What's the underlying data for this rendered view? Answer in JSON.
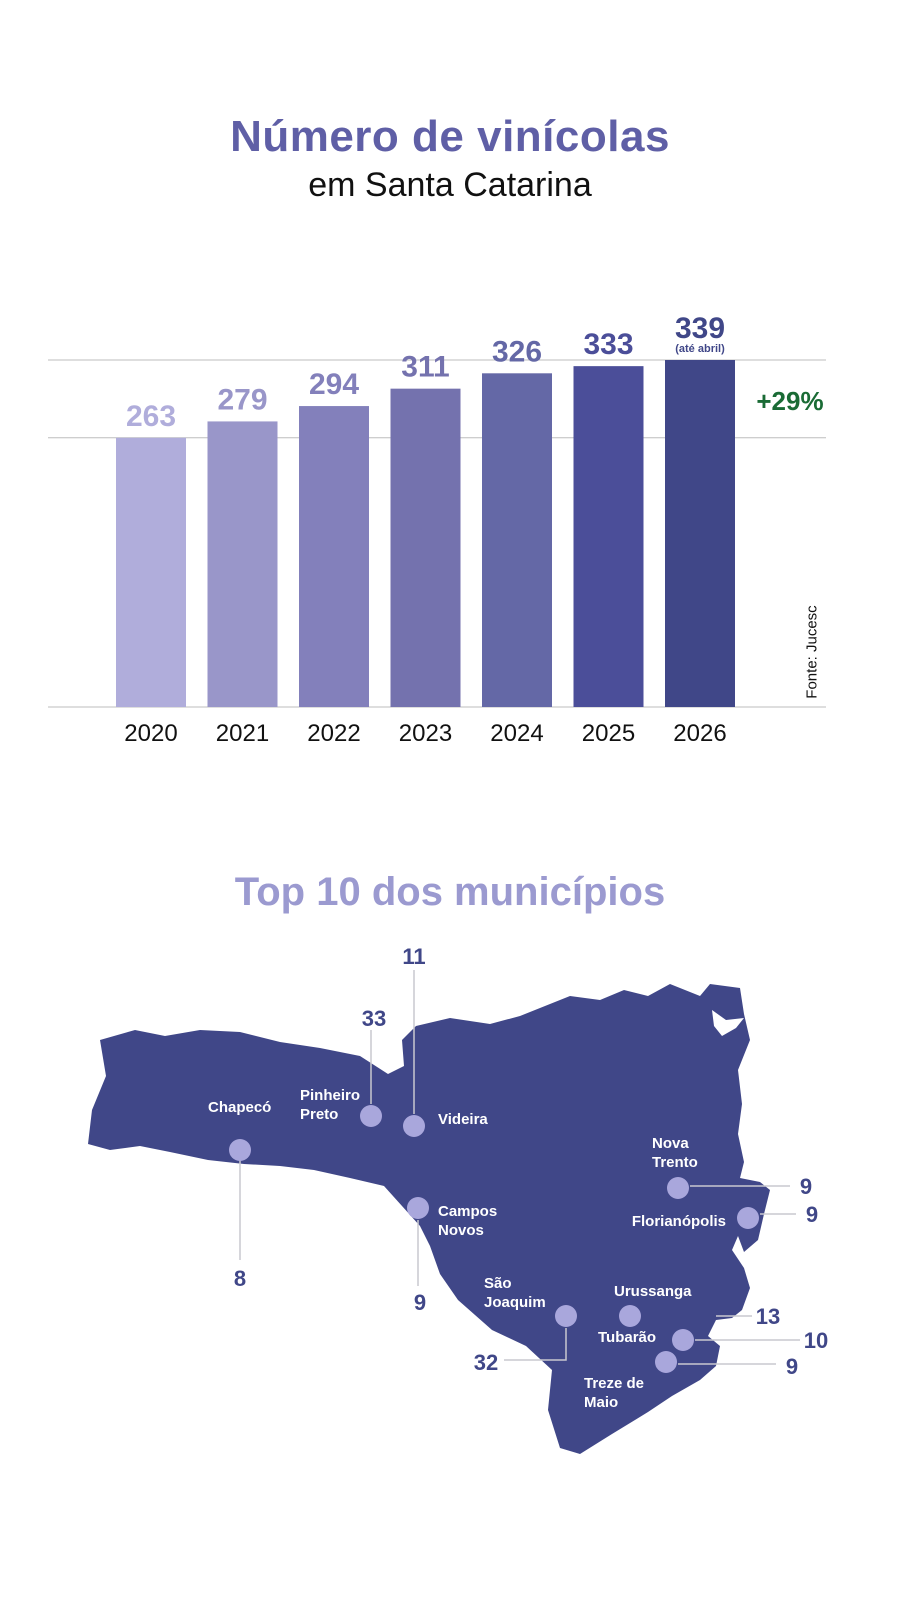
{
  "header": {
    "title": "Número de vinícolas",
    "subtitle": "em Santa Catarina"
  },
  "chart_data": {
    "type": "bar",
    "categories": [
      "2020",
      "2021",
      "2022",
      "2023",
      "2024",
      "2025",
      "2026"
    ],
    "values": [
      263,
      279,
      294,
      311,
      326,
      333,
      339
    ],
    "value_labels": [
      "263",
      "279",
      "294",
      "311",
      "326",
      "333",
      "339"
    ],
    "notes": [
      "",
      "",
      "",
      "",
      "",
      "",
      "(até abril)"
    ],
    "bar_colors": [
      "#b0addb",
      "#9996c9",
      "#8380bb",
      "#7472ae",
      "#6468a6",
      "#4b4e99",
      "#404788"
    ],
    "value_label_colors": [
      "#b0addb",
      "#9996c9",
      "#8380bb",
      "#7472ae",
      "#6468a6",
      "#4b4e99",
      "#404788"
    ],
    "growth_label": "+29%",
    "growth_color": "#1a6b35",
    "ylim": [
      0,
      339
    ],
    "reference_lines_at": [
      263,
      339
    ],
    "grid": false,
    "xlabel": "",
    "ylabel": "",
    "source": "Fonte: Jucesc"
  },
  "section2": {
    "title": "Top 10 dos municípios"
  },
  "map": {
    "fill_color": "#404788",
    "marker_color": "#a9a7dc",
    "cities": [
      {
        "name": [
          "Chapecó"
        ],
        "count": "8"
      },
      {
        "name": [
          "Pinheiro",
          "Preto"
        ],
        "count": "33"
      },
      {
        "name": [
          "Videira"
        ],
        "count": "11"
      },
      {
        "name": [
          "Campos",
          "Novos"
        ],
        "count": "9"
      },
      {
        "name": [
          "Nova",
          "Trento"
        ],
        "count": "9"
      },
      {
        "name": [
          "Florianópolis"
        ],
        "count": "9"
      },
      {
        "name": [
          "São",
          "Joaquim"
        ],
        "count": "32"
      },
      {
        "name": [
          "Urussanga"
        ],
        "count": "13"
      },
      {
        "name": [
          "Tubarão"
        ],
        "count": "10"
      },
      {
        "name": [
          "Treze de",
          "Maio"
        ],
        "count": "9"
      }
    ]
  }
}
